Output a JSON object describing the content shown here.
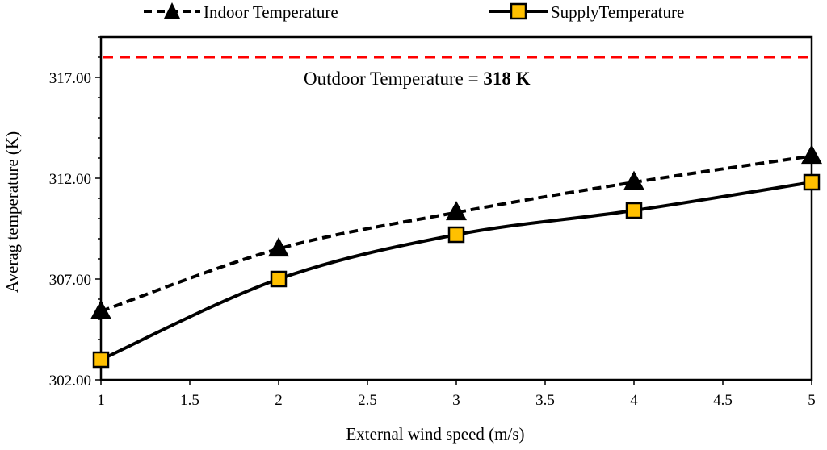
{
  "chart_data": {
    "type": "line",
    "title": "",
    "xlabel": "External wind speed (m/s)",
    "ylabel": "Averag temperature (K)",
    "xlim": [
      1,
      5
    ],
    "ylim": [
      302,
      319
    ],
    "x_ticks": [
      "1",
      "1.5",
      "2",
      "2.5",
      "3",
      "3.5",
      "4",
      "4.5",
      "5"
    ],
    "x_tick_values": [
      1,
      1.5,
      2,
      2.5,
      3,
      3.5,
      4,
      4.5,
      5
    ],
    "y_ticks": [
      "302.00",
      "307.00",
      "312.00",
      "317.00"
    ],
    "y_tick_values": [
      302,
      307,
      312,
      317
    ],
    "x": [
      1,
      2,
      3,
      4,
      5
    ],
    "series": [
      {
        "name": "Indoor Temperature",
        "values": [
          305.4,
          308.5,
          310.3,
          311.8,
          313.1
        ],
        "line_style": "dashed",
        "marker": "triangle",
        "marker_color": "#000000",
        "line_color": "#000000"
      },
      {
        "name": "SupplyTemperature",
        "values": [
          303.0,
          307.0,
          309.2,
          310.4,
          311.8
        ],
        "line_style": "solid",
        "marker": "square",
        "marker_color": "#FFC000",
        "line_color": "#000000"
      }
    ],
    "reference_line": {
      "value": 318,
      "color": "#FF0000",
      "style": "dashed"
    },
    "annotation": {
      "prefix": "Outdoor Temperature = ",
      "value_text": "318 K"
    },
    "legend_position": "top"
  }
}
